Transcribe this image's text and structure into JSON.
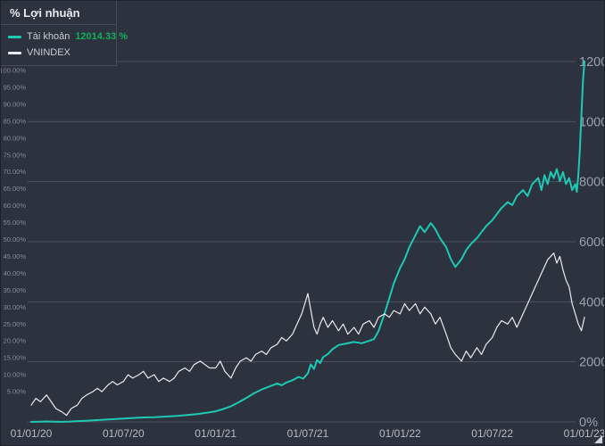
{
  "header": {
    "title": "% Lợi nhuận"
  },
  "legend": {
    "account": {
      "label": "Tài khoản",
      "value": "12014.33 %"
    },
    "index": {
      "label": "VNINDEX"
    }
  },
  "colors": {
    "background": "#2c323e",
    "grid": "#4e5361",
    "left_label": "#878c96",
    "right_label": "#9aa1ad",
    "bottom_label": "#b7bbc3",
    "value_green": "#12b05a",
    "account_line": "#1ec9b4",
    "vnindex_line": "#e9ebee"
  },
  "chart_data": {
    "type": "line",
    "title": "% Lợi nhuận",
    "legend_position": "top-left",
    "grid": true,
    "x_axis": {
      "labels": [
        "01/01/20",
        "01/07/20",
        "01/01/21",
        "01/07/21",
        "01/01/22",
        "01/07/22",
        "01/01/23"
      ],
      "positions_months": [
        0,
        6,
        12,
        18,
        24,
        30,
        36
      ],
      "range_months": [
        0,
        36
      ]
    },
    "right_axis": {
      "unit": "%",
      "range": [
        0,
        12000
      ],
      "ticks": [
        {
          "v": 12000,
          "label": "12000%"
        },
        {
          "v": 10000,
          "label": "10000%"
        },
        {
          "v": 8000,
          "label": "8000%"
        },
        {
          "v": 6000,
          "label": "6000%"
        },
        {
          "v": 4000,
          "label": "4000%"
        },
        {
          "v": 2000,
          "label": "2000%"
        },
        {
          "v": 0,
          "label": "0%"
        }
      ]
    },
    "left_axis": {
      "unit": "%",
      "range": [
        0,
        100
      ],
      "ticks": [
        {
          "v": 100,
          "label": "100.00%"
        },
        {
          "v": 95,
          "label": "95.00%"
        },
        {
          "v": 90,
          "label": "90.00%"
        },
        {
          "v": 85,
          "label": "85.00%"
        },
        {
          "v": 80,
          "label": "80.00%"
        },
        {
          "v": 75,
          "label": "75.00%"
        },
        {
          "v": 70,
          "label": "70.00%"
        },
        {
          "v": 65,
          "label": "65.00%"
        },
        {
          "v": 60,
          "label": "60.00%"
        },
        {
          "v": 55,
          "label": "55.00%"
        },
        {
          "v": 50,
          "label": "50.00%"
        },
        {
          "v": 45,
          "label": "45.00%"
        },
        {
          "v": 40,
          "label": "40.00%"
        },
        {
          "v": 35,
          "label": "35.00%"
        },
        {
          "v": 30,
          "label": "30.00%"
        },
        {
          "v": 25,
          "label": "25.00%"
        },
        {
          "v": 20,
          "label": "20.00%"
        },
        {
          "v": 15,
          "label": "15.00%"
        },
        {
          "v": 10,
          "label": "10.00%"
        },
        {
          "v": 5,
          "label": "5.00%"
        }
      ]
    },
    "series": [
      {
        "id": "account",
        "name": "Tài khoản",
        "final_value_pct": 12014.33,
        "axis": "right",
        "color": "#1ec9b4",
        "width": 2,
        "points": [
          [
            0,
            0
          ],
          [
            0.5,
            6
          ],
          [
            1,
            14
          ],
          [
            1.5,
            9
          ],
          [
            2,
            4
          ],
          [
            2.5,
            12
          ],
          [
            3,
            26
          ],
          [
            3.5,
            38
          ],
          [
            4,
            52
          ],
          [
            4.5,
            66
          ],
          [
            5,
            82
          ],
          [
            5.5,
            96
          ],
          [
            6,
            112
          ],
          [
            6.5,
            126
          ],
          [
            7,
            142
          ],
          [
            7.5,
            152
          ],
          [
            8,
            158
          ],
          [
            8.5,
            168
          ],
          [
            9,
            186
          ],
          [
            9.5,
            202
          ],
          [
            10,
            222
          ],
          [
            10.5,
            246
          ],
          [
            11,
            272
          ],
          [
            11.5,
            312
          ],
          [
            12,
            352
          ],
          [
            12.5,
            432
          ],
          [
            13,
            522
          ],
          [
            13.5,
            652
          ],
          [
            14,
            800
          ],
          [
            14.5,
            952
          ],
          [
            15,
            1080
          ],
          [
            15.5,
            1180
          ],
          [
            16,
            1280
          ],
          [
            16.3,
            1220
          ],
          [
            16.6,
            1310
          ],
          [
            17,
            1390
          ],
          [
            17.4,
            1500
          ],
          [
            17.7,
            1440
          ],
          [
            18,
            1620
          ],
          [
            18.2,
            1920
          ],
          [
            18.4,
            1760
          ],
          [
            18.6,
            2060
          ],
          [
            18.8,
            1960
          ],
          [
            19,
            2160
          ],
          [
            19.3,
            2260
          ],
          [
            19.6,
            2420
          ],
          [
            20,
            2560
          ],
          [
            20.5,
            2610
          ],
          [
            21,
            2660
          ],
          [
            21.5,
            2620
          ],
          [
            22,
            2700
          ],
          [
            22.3,
            2760
          ],
          [
            22.6,
            3020
          ],
          [
            23,
            3620
          ],
          [
            23.3,
            4120
          ],
          [
            23.6,
            4620
          ],
          [
            24,
            5120
          ],
          [
            24.3,
            5420
          ],
          [
            24.6,
            5820
          ],
          [
            25,
            6220
          ],
          [
            25.3,
            6520
          ],
          [
            25.6,
            6320
          ],
          [
            26,
            6620
          ],
          [
            26.3,
            6420
          ],
          [
            26.6,
            6120
          ],
          [
            27,
            5820
          ],
          [
            27.3,
            5420
          ],
          [
            27.6,
            5160
          ],
          [
            28,
            5420
          ],
          [
            28.3,
            5720
          ],
          [
            28.6,
            5920
          ],
          [
            29,
            6120
          ],
          [
            29.3,
            6320
          ],
          [
            29.6,
            6520
          ],
          [
            30,
            6720
          ],
          [
            30.3,
            6920
          ],
          [
            30.6,
            7120
          ],
          [
            31,
            7320
          ],
          [
            31.3,
            7220
          ],
          [
            31.6,
            7520
          ],
          [
            32,
            7720
          ],
          [
            32.3,
            7520
          ],
          [
            32.6,
            7920
          ],
          [
            33,
            8120
          ],
          [
            33.2,
            7720
          ],
          [
            33.4,
            8220
          ],
          [
            33.6,
            7920
          ],
          [
            33.8,
            8320
          ],
          [
            34,
            8120
          ],
          [
            34.2,
            8420
          ],
          [
            34.4,
            8020
          ],
          [
            34.6,
            8320
          ],
          [
            34.8,
            7920
          ],
          [
            35,
            8120
          ],
          [
            35.2,
            7720
          ],
          [
            35.4,
            7920
          ],
          [
            35.5,
            7660
          ],
          [
            35.6,
            8220
          ],
          [
            35.7,
            9050
          ],
          [
            35.8,
            10250
          ],
          [
            35.9,
            11350
          ],
          [
            36,
            12014.33
          ]
        ]
      },
      {
        "id": "vnindex",
        "name": "VNINDEX",
        "axis": "left",
        "color": "#e9ebee",
        "width": 1.2,
        "points": [
          [
            0,
            1
          ],
          [
            0.3,
            3
          ],
          [
            0.6,
            2
          ],
          [
            1,
            4
          ],
          [
            1.3,
            2
          ],
          [
            1.6,
            0
          ],
          [
            2,
            -1
          ],
          [
            2.3,
            -2
          ],
          [
            2.6,
            0
          ],
          [
            3,
            1
          ],
          [
            3.3,
            3
          ],
          [
            3.6,
            4
          ],
          [
            4,
            5
          ],
          [
            4.3,
            6
          ],
          [
            4.6,
            5
          ],
          [
            5,
            7
          ],
          [
            5.3,
            8
          ],
          [
            5.6,
            7
          ],
          [
            6,
            8
          ],
          [
            6.3,
            10
          ],
          [
            6.6,
            9
          ],
          [
            7,
            10
          ],
          [
            7.3,
            11
          ],
          [
            7.6,
            9
          ],
          [
            8,
            10
          ],
          [
            8.3,
            8
          ],
          [
            8.6,
            9
          ],
          [
            9,
            8
          ],
          [
            9.3,
            9
          ],
          [
            9.6,
            11
          ],
          [
            10,
            12
          ],
          [
            10.3,
            11
          ],
          [
            10.6,
            13
          ],
          [
            11,
            14
          ],
          [
            11.3,
            13
          ],
          [
            11.6,
            12
          ],
          [
            12,
            12
          ],
          [
            12.3,
            14
          ],
          [
            12.6,
            11
          ],
          [
            13,
            9
          ],
          [
            13.3,
            12
          ],
          [
            13.6,
            14
          ],
          [
            14,
            15
          ],
          [
            14.3,
            14
          ],
          [
            14.6,
            16
          ],
          [
            15,
            17
          ],
          [
            15.3,
            16
          ],
          [
            15.6,
            18
          ],
          [
            16,
            19
          ],
          [
            16.3,
            21
          ],
          [
            16.6,
            20
          ],
          [
            17,
            22
          ],
          [
            17.3,
            25
          ],
          [
            17.6,
            28
          ],
          [
            17.8,
            31
          ],
          [
            18,
            34
          ],
          [
            18.2,
            29
          ],
          [
            18.4,
            24
          ],
          [
            18.6,
            22
          ],
          [
            18.8,
            25
          ],
          [
            19,
            27
          ],
          [
            19.3,
            24
          ],
          [
            19.6,
            26
          ],
          [
            20,
            23
          ],
          [
            20.3,
            25
          ],
          [
            20.6,
            22
          ],
          [
            21,
            24
          ],
          [
            21.3,
            22
          ],
          [
            21.6,
            25
          ],
          [
            22,
            26
          ],
          [
            22.3,
            24
          ],
          [
            22.6,
            27
          ],
          [
            23,
            28
          ],
          [
            23.3,
            27
          ],
          [
            23.6,
            29
          ],
          [
            24,
            28
          ],
          [
            24.3,
            31
          ],
          [
            24.6,
            29
          ],
          [
            25,
            31
          ],
          [
            25.3,
            28
          ],
          [
            25.6,
            30
          ],
          [
            26,
            28
          ],
          [
            26.3,
            25
          ],
          [
            26.6,
            27
          ],
          [
            27,
            22
          ],
          [
            27.3,
            18
          ],
          [
            27.6,
            16
          ],
          [
            28,
            14
          ],
          [
            28.3,
            17
          ],
          [
            28.6,
            15
          ],
          [
            29,
            18
          ],
          [
            29.3,
            16
          ],
          [
            29.6,
            19
          ],
          [
            30,
            21
          ],
          [
            30.3,
            24
          ],
          [
            30.6,
            26
          ],
          [
            31,
            25
          ],
          [
            31.3,
            27
          ],
          [
            31.6,
            24
          ],
          [
            32,
            28
          ],
          [
            32.3,
            31
          ],
          [
            32.6,
            34
          ],
          [
            33,
            38
          ],
          [
            33.3,
            41
          ],
          [
            33.6,
            44
          ],
          [
            34,
            46
          ],
          [
            34.2,
            43
          ],
          [
            34.4,
            45
          ],
          [
            34.6,
            41
          ],
          [
            34.8,
            38
          ],
          [
            35,
            36
          ],
          [
            35.2,
            31
          ],
          [
            35.4,
            28
          ],
          [
            35.6,
            25
          ],
          [
            35.8,
            23
          ],
          [
            36,
            27
          ]
        ]
      }
    ]
  }
}
